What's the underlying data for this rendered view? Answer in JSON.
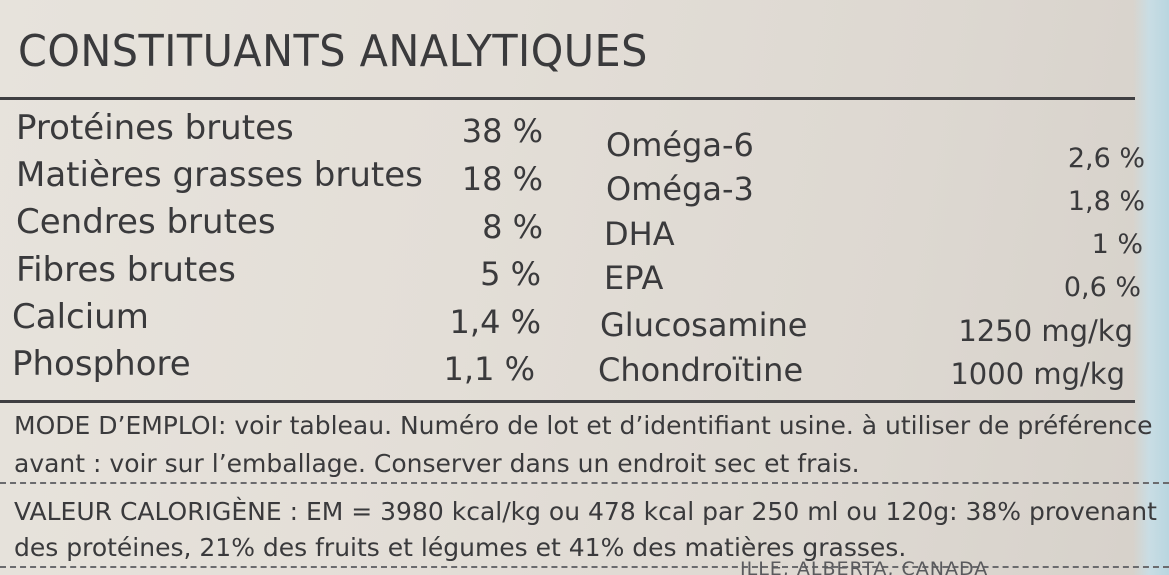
{
  "title": "CONSTITUANTS ANALYTIQUES",
  "left_column": [
    {
      "name": "Protéines brutes",
      "value": "38 %"
    },
    {
      "name": "Matières grasses brutes",
      "value": "18 %"
    },
    {
      "name": "Cendres brutes",
      "value": "8 %"
    },
    {
      "name": "Fibres brutes",
      "value": "5 %"
    },
    {
      "name": "Calcium",
      "value": "1,4 %"
    },
    {
      "name": "Phosphore",
      "value": "1,1 %"
    }
  ],
  "right_column": [
    {
      "name": "Oméga-6",
      "value": "2,6 %"
    },
    {
      "name": "Oméga-3",
      "value": "1,8 %"
    },
    {
      "name": "DHA",
      "value": "1 %"
    },
    {
      "name": "EPA",
      "value": "0,6 %"
    },
    {
      "name": "Glucosamine",
      "value": "1250 mg/kg"
    },
    {
      "name": "Chondroïtine",
      "value": "1000 mg/kg"
    }
  ],
  "mode_emploi": {
    "line1": "MODE D’EMPLOI: voir tableau. Numéro de lot et d’identifiant usine. à utiliser de préférence",
    "line2": "avant : voir sur l’emballage. Conserver dans un endroit sec et frais."
  },
  "valeur_calorigene": {
    "line1": "VALEUR CALORIGÈNE : EM = 3980 kcal/kg ou 478 kcal par 250 ml ou 120g: 38% provenant",
    "line2": "des protéines, 21% des fruits et  légumes et 41% des matières grasses."
  },
  "footer_partial": "ILLE, ALBERTA, CANADA"
}
